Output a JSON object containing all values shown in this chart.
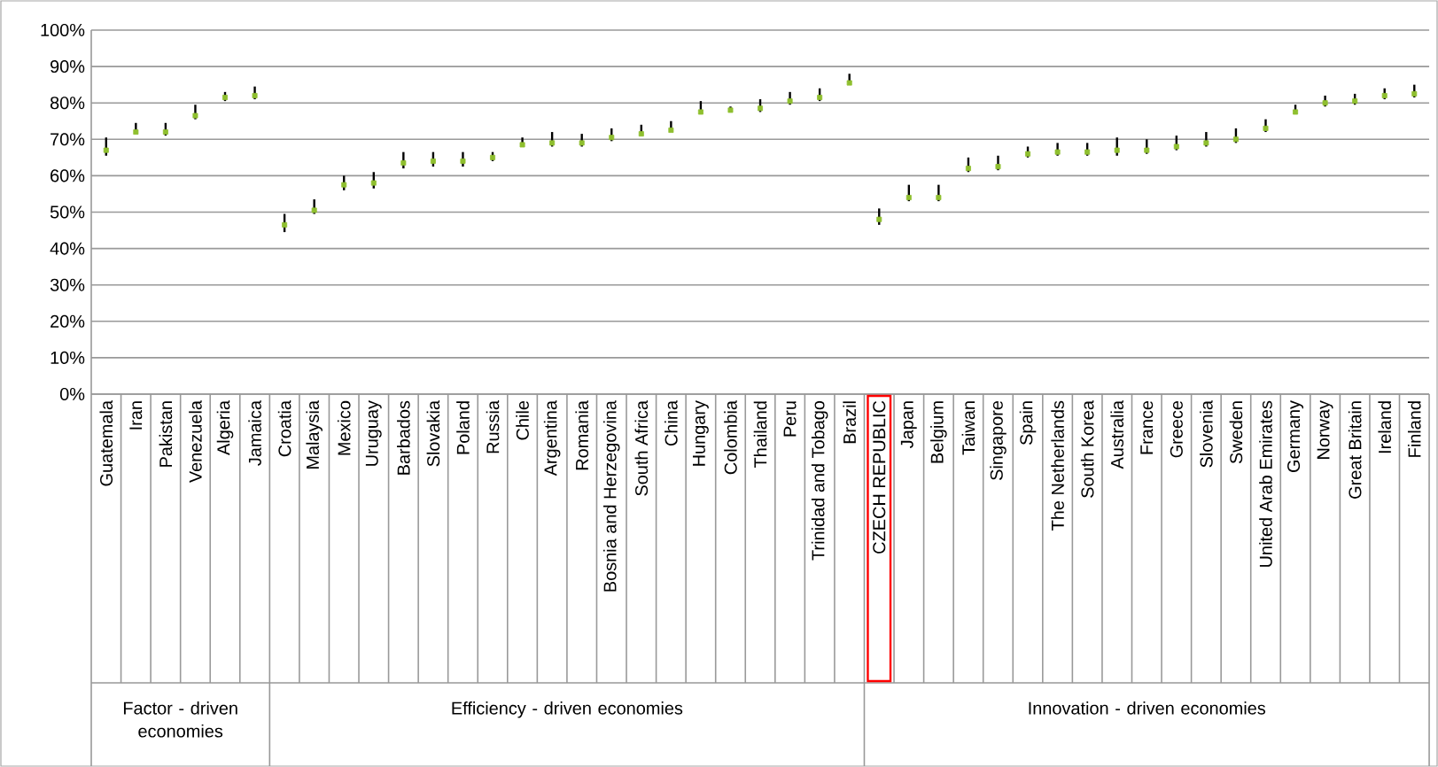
{
  "chart_data": {
    "type": "scatter",
    "categories": [
      "Guatemala",
      "Iran",
      "Pakistan",
      "Venezuela",
      "Algeria",
      "Jamaica",
      "Croatia",
      "Malaysia",
      "Mexico",
      "Uruguay",
      "Barbados",
      "Slovakia",
      "Poland",
      "Russia",
      "Chile",
      "Argentina",
      "Romania",
      "Bosnia and Herzegovina",
      "South Africa",
      "China",
      "Hungary",
      "Colombia",
      "Thailand",
      "Peru",
      "Trinidad and Tobago",
      "Brazil",
      "CZECH REPUBLIC",
      "Japan",
      "Belgium",
      "Taiwan",
      "Singapore",
      "Spain",
      "The Netherlands",
      "South Korea",
      "Australia",
      "France",
      "Greece",
      "Slovenia",
      "Sweden",
      "United Arab Emirates",
      "Germany",
      "Norway",
      "Great Britain",
      "Ireland",
      "Finland"
    ],
    "series": [
      {
        "color": "#8fbf2f",
        "values": [
          67,
          72,
          72,
          76.5,
          81.5,
          82,
          46.5,
          50.5,
          57.5,
          58,
          63.5,
          64,
          64,
          65,
          68.5,
          69,
          69,
          70.5,
          71.5,
          72.5,
          77.5,
          78,
          78.5,
          80.5,
          81.5,
          85.5,
          48,
          54,
          54,
          62,
          62.5,
          66,
          66.5,
          66.5,
          67,
          67,
          68,
          69,
          70,
          73,
          77.5,
          80,
          80.5,
          82,
          82.5
        ],
        "errors": [
          [
            65.5,
            70.5
          ],
          [
            71.5,
            74.5
          ],
          [
            71,
            74.5
          ],
          [
            75.5,
            79.5
          ],
          [
            80.5,
            83
          ],
          [
            81,
            84.5
          ],
          [
            44.5,
            49.5
          ],
          [
            49.5,
            53.5
          ],
          [
            56,
            60
          ],
          [
            56.5,
            61
          ],
          [
            62,
            66.5
          ],
          [
            62.5,
            66.5
          ],
          [
            62.5,
            66.5
          ],
          [
            64,
            66.5
          ],
          [
            68,
            70.5
          ],
          [
            68,
            72
          ],
          [
            68,
            71.5
          ],
          [
            69.5,
            73
          ],
          [
            71,
            74
          ],
          [
            72,
            75
          ],
          [
            77,
            80.5
          ],
          [
            77.5,
            79
          ],
          [
            77.5,
            81
          ],
          [
            79.5,
            83
          ],
          [
            80.5,
            84
          ],
          [
            85,
            88
          ],
          [
            46.5,
            51
          ],
          [
            53,
            57.5
          ],
          [
            53,
            57.5
          ],
          [
            61,
            65
          ],
          [
            61.5,
            65.5
          ],
          [
            65,
            68
          ],
          [
            65.5,
            69
          ],
          [
            65.5,
            69
          ],
          [
            65.5,
            70.5
          ],
          [
            66,
            70
          ],
          [
            67,
            71
          ],
          [
            68,
            72
          ],
          [
            69,
            73
          ],
          [
            72,
            75.5
          ],
          [
            77,
            79.5
          ],
          [
            79,
            82
          ],
          [
            79.5,
            82.5
          ],
          [
            81,
            84
          ],
          [
            81.5,
            85
          ]
        ]
      }
    ],
    "ylim": [
      0,
      100
    ],
    "yticks": [
      {
        "value": 0,
        "label": "0%"
      },
      {
        "value": 10,
        "label": "10%"
      },
      {
        "value": 20,
        "label": "20%"
      },
      {
        "value": 30,
        "label": "30%"
      },
      {
        "value": 40,
        "label": "40%"
      },
      {
        "value": 50,
        "label": "50%"
      },
      {
        "value": 60,
        "label": "60%"
      },
      {
        "value": 70,
        "label": "70%"
      },
      {
        "value": 80,
        "label": "80%"
      },
      {
        "value": 90,
        "label": "90%"
      },
      {
        "value": 100,
        "label": "100%"
      }
    ],
    "grid": "y",
    "marker": "square",
    "annotations": [
      "Factor - driven economies",
      "Efficiency - driven economies",
      "Innovation - driven economies"
    ]
  }
}
